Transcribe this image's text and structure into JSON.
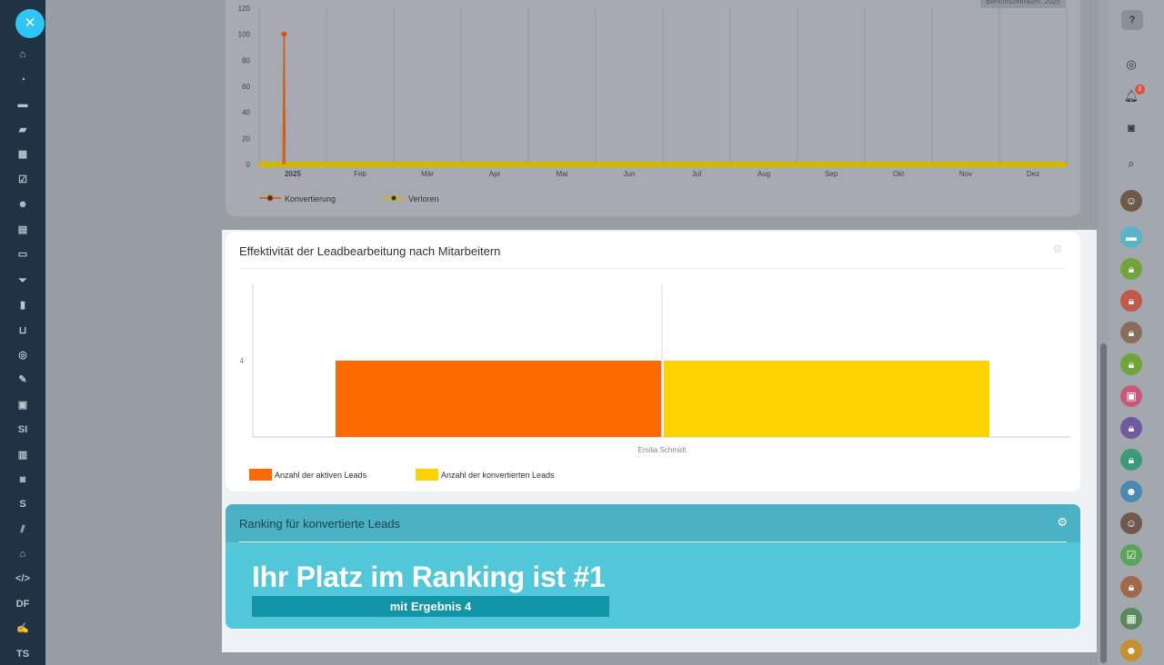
{
  "top_chart": {
    "period_badge": "Berichtszeitraum: 2025",
    "y_ticks": [
      "120",
      "100",
      "80",
      "60",
      "40",
      "20",
      "0"
    ],
    "x_ticks": [
      "2025",
      "Feb",
      "Mär",
      "Apr",
      "Mai",
      "Jun",
      "Jul",
      "Aug",
      "Sep",
      "Okt",
      "Nov",
      "Dez"
    ],
    "legend": [
      "Konvertierung",
      "Verloren"
    ],
    "colors": {
      "konvertierung": "#d15a14",
      "verloren": "#d3b600"
    }
  },
  "effectiveness": {
    "title": "Effektivität der Leadbearbeitung nach Mitarbeitern",
    "gear_icon": "gear-icon"
  },
  "chart_data": [
    {
      "type": "line",
      "x": [
        "2025",
        "Feb",
        "Mär",
        "Apr",
        "Mai",
        "Jun",
        "Jul",
        "Aug",
        "Sep",
        "Okt",
        "Nov",
        "Dez"
      ],
      "series": [
        {
          "name": "Konvertierung",
          "values": [
            100,
            0,
            0,
            0,
            0,
            0,
            0,
            0,
            0,
            0,
            0,
            0
          ]
        },
        {
          "name": "Verloren",
          "values": [
            0,
            0,
            0,
            0,
            0,
            0,
            0,
            0,
            0,
            0,
            0,
            0
          ]
        }
      ],
      "ylim": [
        0,
        120
      ],
      "grid": true,
      "legend_position": "bottom-left"
    },
    {
      "type": "bar",
      "title": "Effektivität der Leadbearbeitung nach Mitarbeitern",
      "categories": [
        "Emilia Schmidt"
      ],
      "series": [
        {
          "name": "Anzahl der aktiven Leads",
          "values": [
            4
          ],
          "color": "#ff6a00"
        },
        {
          "name": "Anzahl der konvertierten Leads",
          "values": [
            4
          ],
          "color": "#fcd200"
        }
      ],
      "y_tick_labels": [
        "4"
      ],
      "ylim": [
        0,
        8
      ],
      "legend_position": "bottom-left"
    }
  ],
  "ranking": {
    "title": "Ranking für konvertierte Leads",
    "headline": "Ihr Platz im Ranking ist #1",
    "result": "mit Ergebnis 4"
  },
  "left_nav": {
    "close_label": "✕",
    "text_items": [
      "SI",
      "S",
      "DF",
      "TS"
    ]
  },
  "right_bar": {
    "help_label": "?",
    "notification_count": "2"
  }
}
